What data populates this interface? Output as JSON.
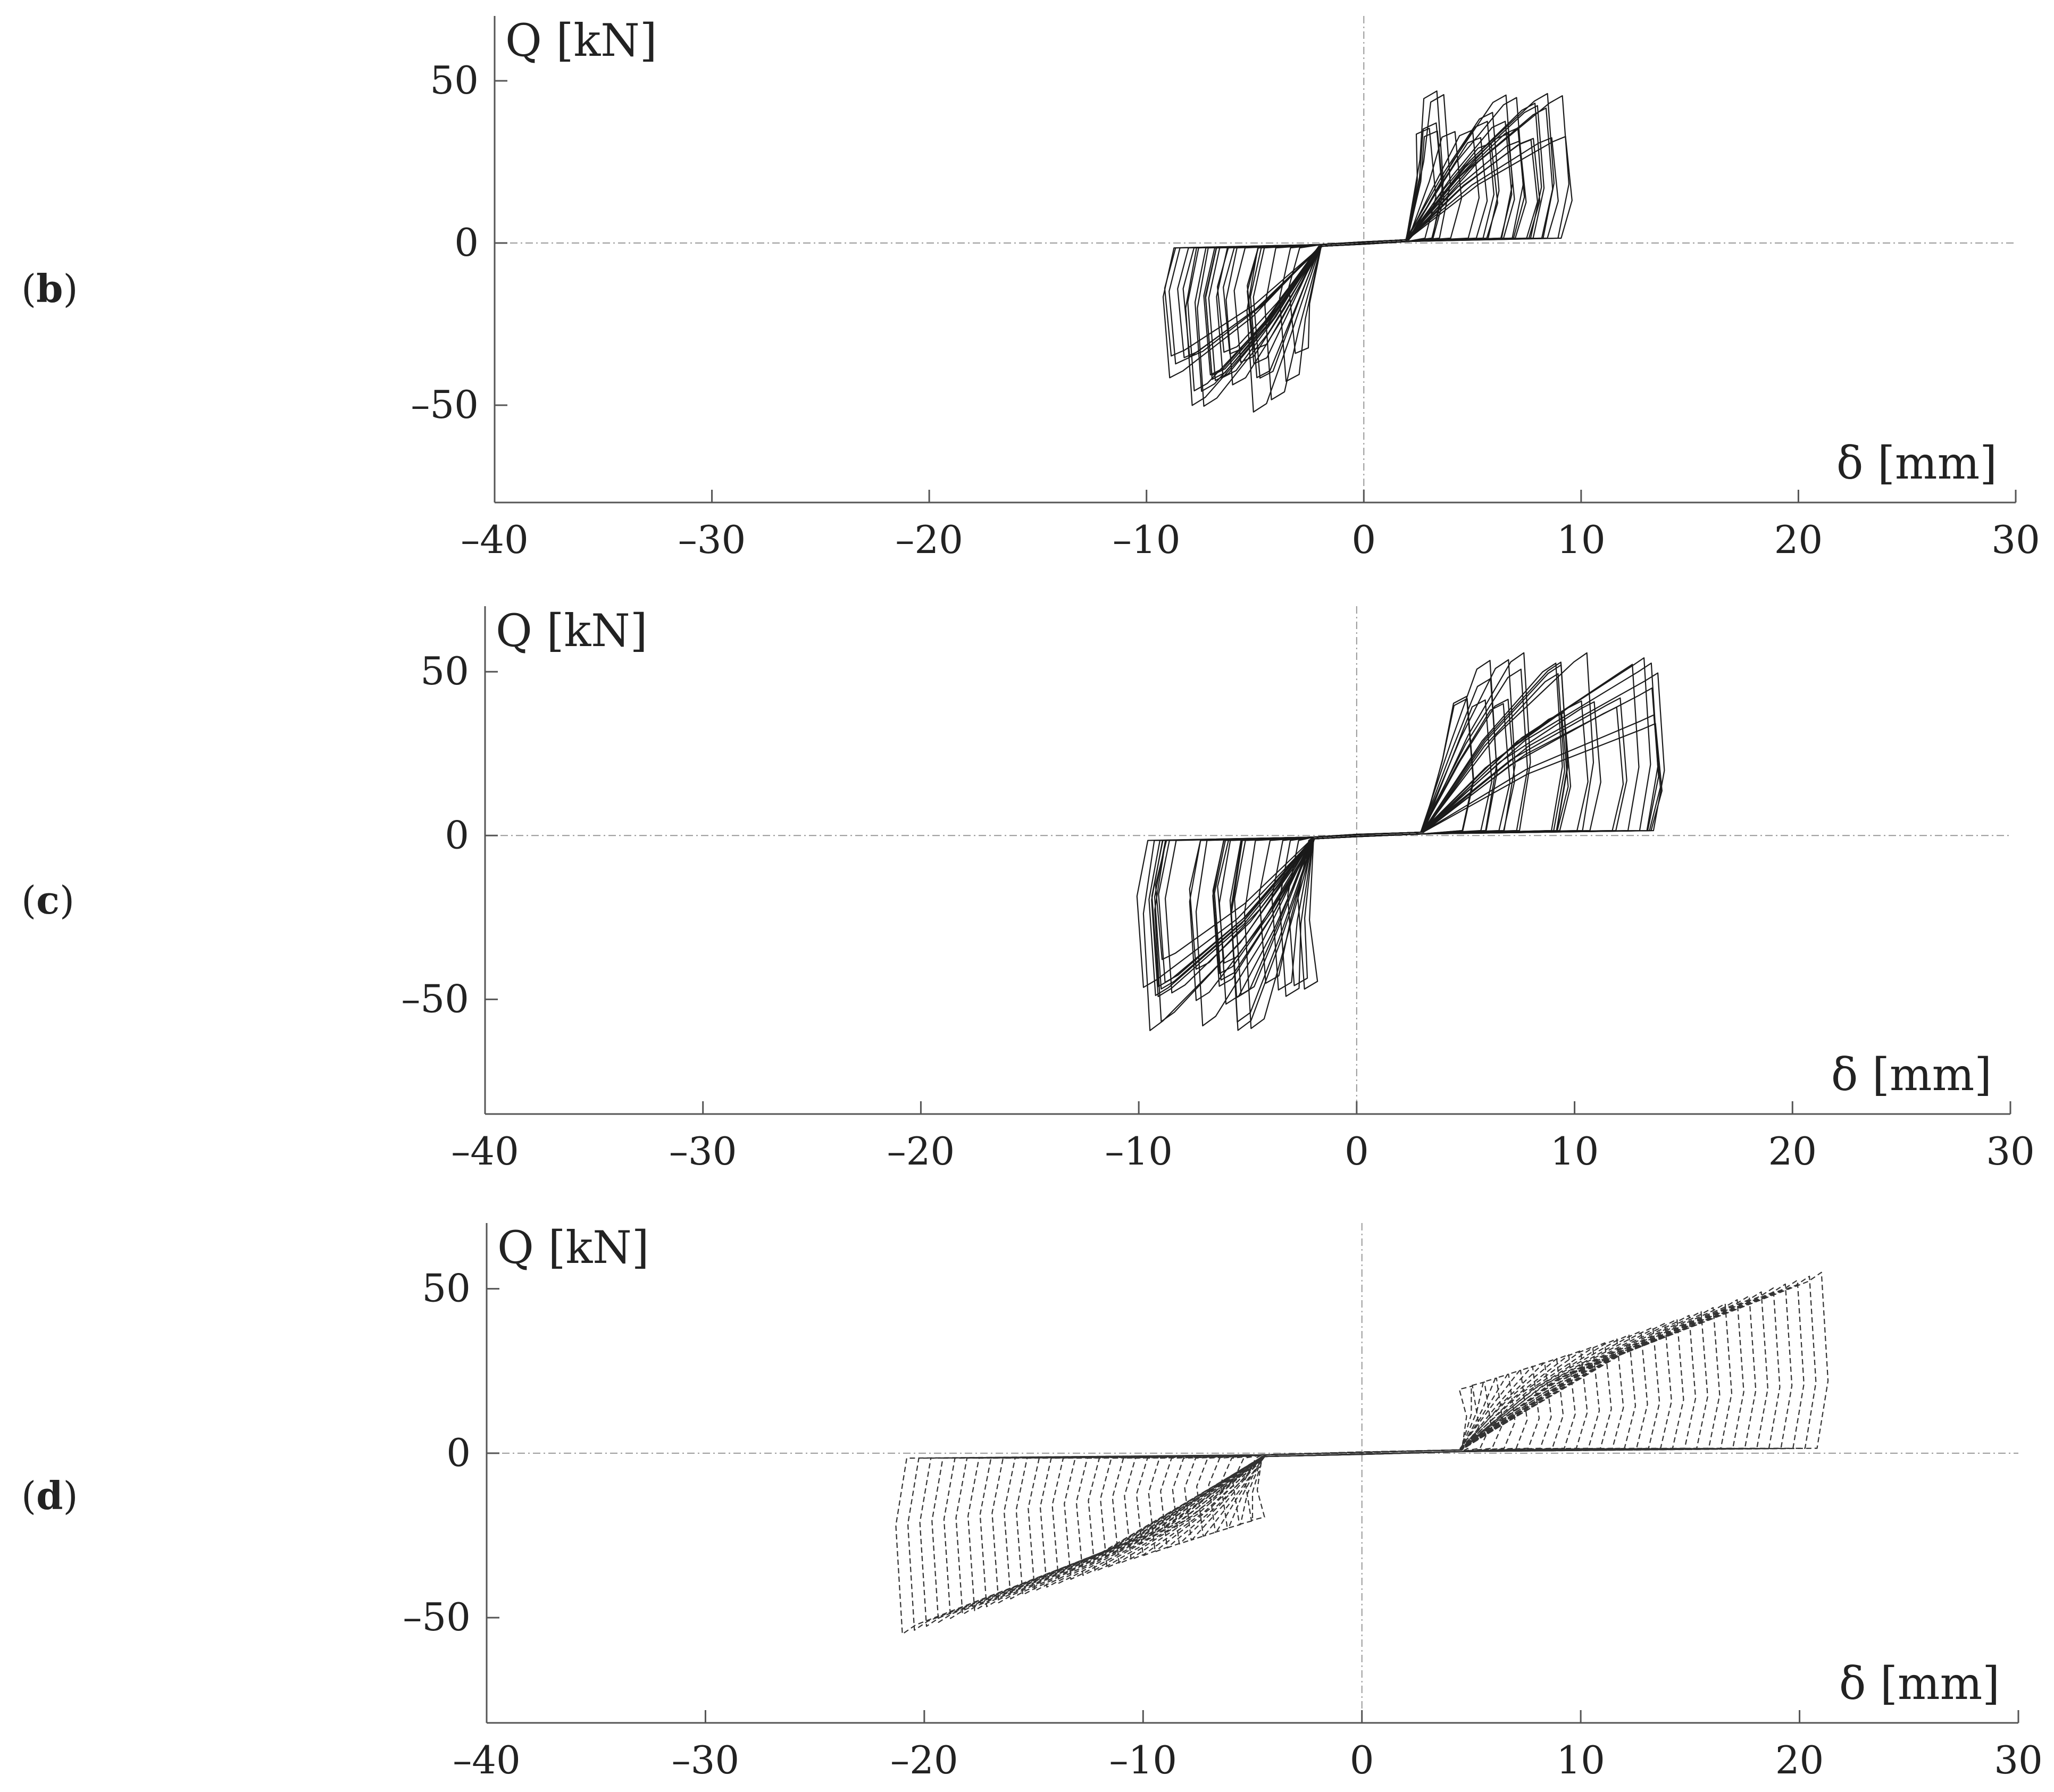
{
  "panels": [
    {
      "label": "b",
      "chart_data": {
        "type": "line",
        "ylabel": "Q [kN]",
        "xlabel": "δ [mm]",
        "xlim": [
          -40,
          30
        ],
        "ylim": [
          -80,
          70
        ],
        "xticks": [
          -40,
          -30,
          -20,
          -10,
          0,
          10,
          20,
          30
        ],
        "yticks": [
          -50,
          0,
          50
        ],
        "ytick_labels": [
          "–50",
          "0",
          "50"
        ],
        "xtick_labels": [
          "–40",
          "–30",
          "–20",
          "–10",
          "0",
          "10",
          "20",
          "30"
        ],
        "grid": false,
        "style": "solid",
        "loop_envelope": {
          "pos_peak": [
            9.5,
            48
          ],
          "neg_peak": [
            -8.5,
            -53
          ],
          "pos_slip_start": 2,
          "neg_slip_start": -2,
          "pos_loop_x_range": [
            2.5,
            9.5
          ],
          "neg_loop_x_range": [
            -9,
            -2.5
          ],
          "cycles": 26
        }
      }
    },
    {
      "label": "c",
      "chart_data": {
        "type": "line",
        "ylabel": "Q [kN]",
        "xlabel": "δ [mm]",
        "xlim": [
          -40,
          30
        ],
        "ylim": [
          -85,
          70
        ],
        "xticks": [
          -40,
          -30,
          -20,
          -10,
          0,
          10,
          20,
          30
        ],
        "yticks": [
          -50,
          0,
          50
        ],
        "ytick_labels": [
          "–50",
          "0",
          "50"
        ],
        "xtick_labels": [
          "–40",
          "–30",
          "–20",
          "–10",
          "0",
          "10",
          "20",
          "30"
        ],
        "grid": false,
        "style": "solid",
        "loop_envelope": {
          "pos_peak": [
            14,
            56
          ],
          "neg_peak": [
            -15,
            -60
          ],
          "pos_slip_start": 3,
          "neg_slip_start": -2,
          "pos_loop_x_range": [
            4.5,
            14
          ],
          "neg_loop_x_range": [
            -10,
            -2
          ],
          "cycles": 28
        }
      }
    },
    {
      "label": "d",
      "chart_data": {
        "type": "line",
        "ylabel": "Q [kN]",
        "xlabel": "δ [mm]",
        "xlim": [
          -40,
          30
        ],
        "ylim": [
          -82,
          70
        ],
        "xticks": [
          -40,
          -30,
          -20,
          -10,
          0,
          10,
          20,
          30
        ],
        "yticks": [
          -50,
          0,
          50
        ],
        "ytick_labels": [
          "–50",
          "0",
          "50"
        ],
        "xtick_labels": [
          "–40",
          "–30",
          "–20",
          "–10",
          "0",
          "10",
          "20",
          "30"
        ],
        "grid": false,
        "style": "dashed",
        "loop_envelope": {
          "pos_peak": [
            17,
            55
          ],
          "neg_peak": [
            -17,
            -55
          ],
          "pos_slip_start": 4.5,
          "neg_slip_start": -4.5,
          "pos_loop_x_range": [
            4.5,
            21
          ],
          "neg_loop_x_range": [
            -21,
            -4.5
          ],
          "cycles": 30
        }
      }
    }
  ]
}
